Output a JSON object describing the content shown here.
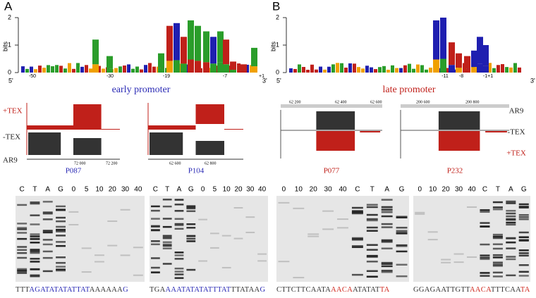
{
  "panels": [
    {
      "label": "A",
      "logo": {
        "yticks": [
          "2",
          "1",
          "0"
        ],
        "ylabel": "bits",
        "ends": [
          "5'",
          "3'"
        ],
        "positions": [
          "-50",
          "-30",
          "-19",
          "-7",
          "+1"
        ],
        "caption": "early promoter",
        "caption_color": "#2b2bb5"
      },
      "tracks": {
        "labels": [
          "+TEX",
          "-TEX",
          "AR9"
        ],
        "label_colors": [
          "#c0201a",
          "#222",
          "#222"
        ],
        "coords": [
          "72 000",
          "72 200",
          "62 600",
          "62 800"
        ],
        "promoters": [
          "P087",
          "P104"
        ],
        "promoter_color": "#2b2bb5"
      },
      "gels": [
        {
          "lanes": [
            "C",
            "T",
            "A",
            "G",
            "0",
            "5",
            "10",
            "20",
            "30",
            "40"
          ],
          "sequence": [
            {
              "text": "TTT",
              "color": "#333"
            },
            {
              "text": "AGATATATATTAT",
              "color": "#2b2bb5"
            },
            {
              "text": "AAAAAA",
              "color": "#333"
            },
            {
              "text": "G",
              "color": "#2b2bb5"
            }
          ]
        },
        {
          "lanes": [
            "C",
            "T",
            "A",
            "G",
            "0",
            "5",
            "10",
            "20",
            "30",
            "40"
          ],
          "sequence": [
            {
              "text": "TGA",
              "color": "#333"
            },
            {
              "text": "AAATATATATTTAT",
              "color": "#2b2bb5"
            },
            {
              "text": "TTATAA",
              "color": "#333"
            },
            {
              "text": "G",
              "color": "#2b2bb5"
            }
          ]
        }
      ]
    },
    {
      "label": "B",
      "logo": {
        "yticks": [
          "2",
          "1",
          "0"
        ],
        "ylabel": "bits",
        "ends": [
          "5'",
          "3'"
        ],
        "positions": [
          "-11",
          "-8",
          "-1+1"
        ],
        "caption": "late promoter",
        "caption_color": "#c0201a"
      },
      "tracks": {
        "labels": [
          "AR9",
          "-TEX",
          "+TEX"
        ],
        "label_colors": [
          "#222",
          "#222",
          "#c0201a"
        ],
        "coords": [
          "62 200",
          "62 400",
          "62 600",
          "200 600",
          "200 800"
        ],
        "promoters": [
          "P077",
          "P232"
        ],
        "promoter_color": "#c0201a"
      },
      "gels": [
        {
          "lanes": [
            "0",
            "10",
            "20",
            "30",
            "40",
            "C",
            "T",
            "A",
            "G"
          ],
          "sequence": [
            {
              "text": "CTTCTTCAATA",
              "color": "#333"
            },
            {
              "text": "AACA",
              "color": "#d02a20"
            },
            {
              "text": "ATATAT",
              "color": "#333"
            },
            {
              "text": "TA",
              "color": "#d02a20"
            }
          ]
        },
        {
          "lanes": [
            "0",
            "10",
            "20",
            "30",
            "40",
            "C",
            "T",
            "A",
            "G"
          ],
          "sequence": [
            {
              "text": "GGAGAATTGTT",
              "color": "#333"
            },
            {
              "text": "AACA",
              "color": "#d02a20"
            },
            {
              "text": "TTTCAA",
              "color": "#333"
            },
            {
              "text": "TA",
              "color": "#d02a20"
            }
          ]
        }
      ]
    }
  ]
}
